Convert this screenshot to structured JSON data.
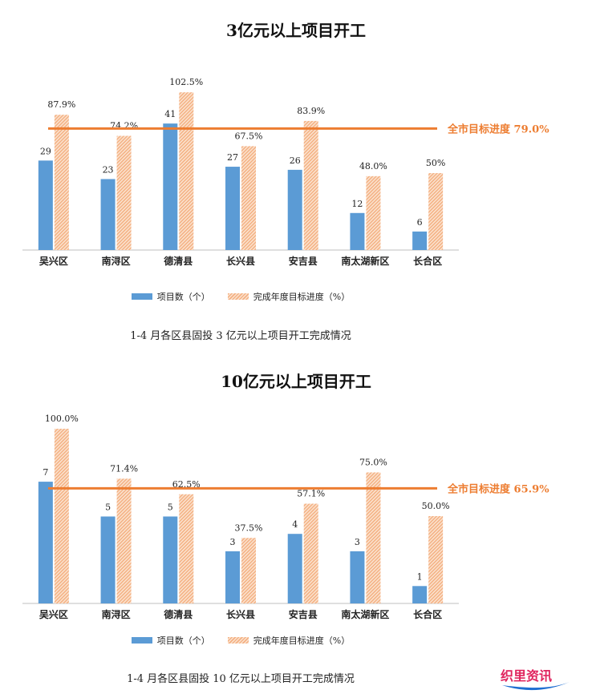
{
  "chart_data": [
    {
      "type": "bar",
      "title": "3亿元以上项目开工",
      "categories": [
        "吴兴区",
        "南浔区",
        "德清县",
        "长兴县",
        "安吉县",
        "南太湖新区",
        "长合区"
      ],
      "series": [
        {
          "name": "项目数（个）",
          "values": [
            29,
            23,
            41,
            27,
            26,
            12,
            6
          ],
          "labels": [
            "29",
            "23",
            "41",
            "27",
            "26",
            "12",
            "6"
          ]
        },
        {
          "name": "完成年度目标进度（%）",
          "values": [
            87.9,
            74.2,
            102.5,
            67.5,
            83.9,
            48.0,
            50
          ],
          "labels": [
            "87.9%",
            "74.2%",
            "102.5%",
            "67.5%",
            "83.9%",
            "48.0%",
            "50%"
          ]
        }
      ],
      "reference_line": {
        "label": "全市目标进度 79.0%",
        "value": 79.0
      },
      "caption": "1-4 月各区县固投 3 亿元以上项目开工完成情况"
    },
    {
      "type": "bar",
      "title": "10亿元以上项目开工",
      "categories": [
        "吴兴区",
        "南浔区",
        "德清县",
        "长兴县",
        "安吉县",
        "南太湖新区",
        "长合区"
      ],
      "series": [
        {
          "name": "项目数（个）",
          "values": [
            7,
            5,
            5,
            3,
            4,
            3,
            1
          ],
          "labels": [
            "7",
            "5",
            "5",
            "3",
            "4",
            "3",
            "1"
          ]
        },
        {
          "name": "完成年度目标进度（%）",
          "values": [
            100.0,
            71.4,
            62.5,
            37.5,
            57.1,
            75.0,
            50.0
          ],
          "labels": [
            "100.0%",
            "71.4%",
            "62.5%",
            "37.5%",
            "57.1%",
            "75.0%",
            "50.0%"
          ]
        }
      ],
      "reference_line": {
        "label": "全市目标进度 65.9%",
        "value": 65.9
      },
      "caption": "1-4 月各区县固投 10 亿元以上项目开工完成情况"
    }
  ],
  "colors": {
    "bar_blue": "#5b9bd5",
    "bar_hatch": "#f4b183",
    "reference": "#ed7d31"
  },
  "logo": {
    "text": "织里资讯"
  }
}
